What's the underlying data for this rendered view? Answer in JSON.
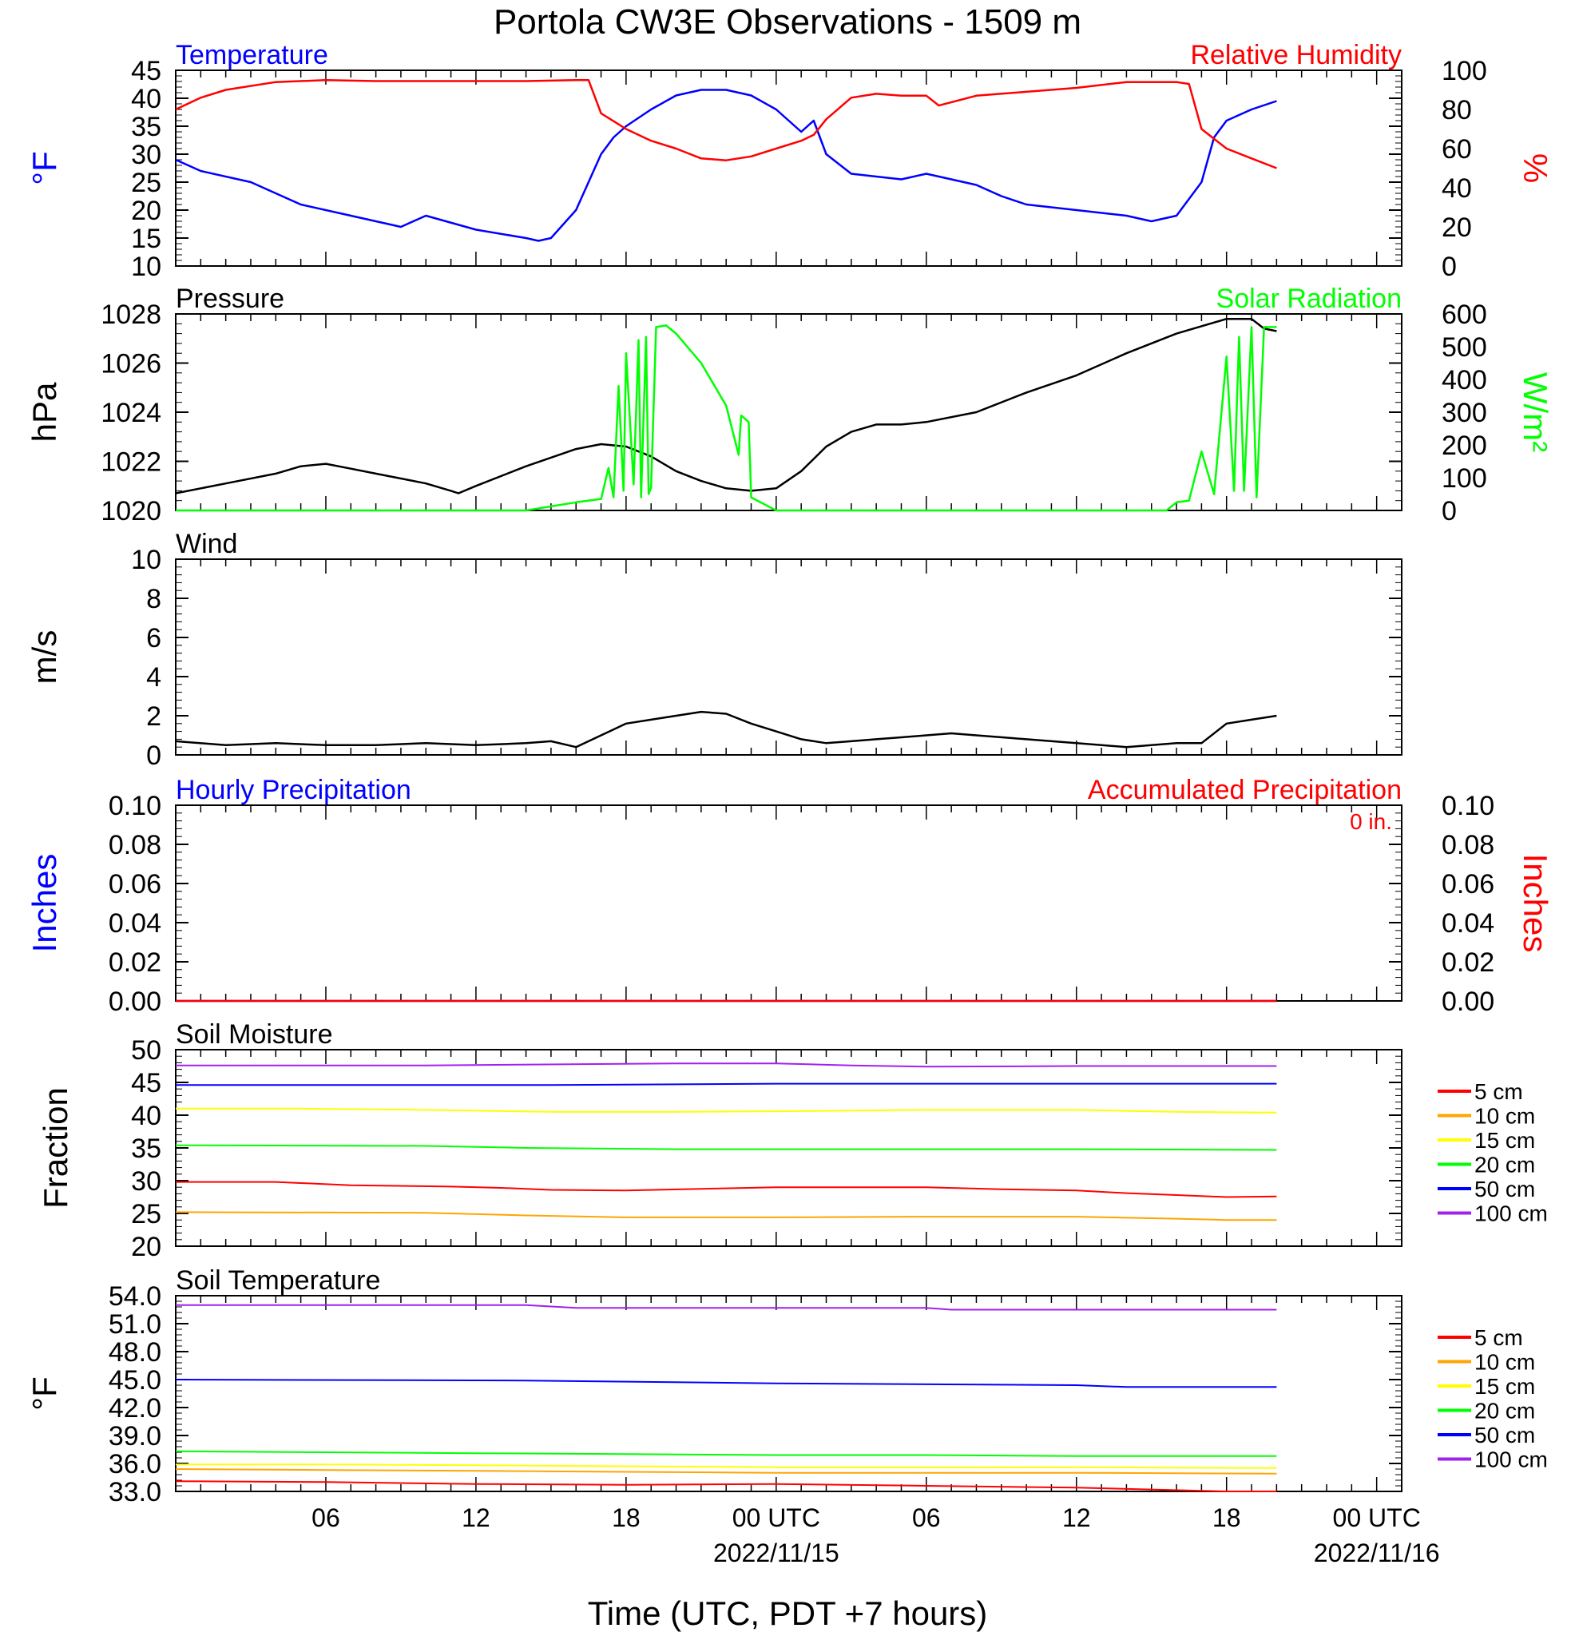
{
  "title": "Portola CW3E Observations - 1509 m",
  "xlabel": "Time (UTC, PDT +7 hours)",
  "x_axis": {
    "ticks": [
      {
        "hour": 6,
        "label": "06"
      },
      {
        "hour": 12,
        "label": "12"
      },
      {
        "hour": 18,
        "label": "18"
      },
      {
        "hour": 24,
        "label": "00 UTC",
        "date": "2022/11/15"
      },
      {
        "hour": 30,
        "label": "06"
      },
      {
        "hour": 36,
        "label": "12"
      },
      {
        "hour": 42,
        "label": "18"
      },
      {
        "hour": 48,
        "label": "00 UTC",
        "date": "2022/11/16"
      }
    ],
    "range_hours": [
      0,
      49
    ]
  },
  "colors": {
    "blue": "#0000ff",
    "red": "#ff0000",
    "green": "#00ff00",
    "black": "#000000",
    "orange": "#ffa500",
    "yellow": "#ffff00",
    "purple": "#a020f0"
  },
  "chart_data": [
    {
      "type": "line",
      "left_title": "Temperature",
      "right_title": "Relative Humidity",
      "left_unit": "°F",
      "right_unit": "%",
      "left_ticks": [
        "45",
        "40",
        "35",
        "30",
        "25",
        "20",
        "15",
        "10"
      ],
      "right_ticks": [
        "100",
        "80",
        "60",
        "40",
        "20",
        "0"
      ],
      "ylim_left": [
        10,
        45
      ],
      "ylim_right": [
        0,
        100
      ],
      "series": [
        {
          "name": "Temperature",
          "axis": "left",
          "x": [
            0,
            1,
            3,
            5,
            7,
            9,
            10,
            12,
            14,
            14.5,
            15,
            16,
            17,
            17.5,
            18,
            19,
            20,
            21,
            22,
            23,
            24,
            25,
            25.5,
            26,
            27,
            28,
            29,
            30,
            32,
            33,
            34,
            36,
            38,
            39,
            40,
            41,
            41.5,
            42,
            43,
            44
          ],
          "y": [
            29,
            27,
            25,
            21,
            19,
            17,
            19,
            16.5,
            15,
            14.5,
            15,
            20,
            30,
            33,
            35,
            38,
            40.5,
            41.5,
            41.5,
            40.5,
            38,
            34,
            36,
            30,
            26.5,
            26,
            25.5,
            26.5,
            24.5,
            22.5,
            21,
            20,
            19,
            18,
            19,
            25,
            33,
            36,
            38,
            39.5
          ]
        },
        {
          "name": "Relative Humidity",
          "axis": "right",
          "x": [
            0,
            1,
            2,
            4,
            6,
            8,
            10,
            12,
            14,
            16,
            16.5,
            17,
            18,
            19,
            20,
            21,
            22,
            23,
            24,
            25,
            25.5,
            26,
            27,
            28,
            29,
            30,
            30.5,
            32,
            34,
            36,
            38,
            40,
            40.5,
            41,
            42,
            43,
            44
          ],
          "y": [
            80,
            86,
            90,
            94,
            95,
            94.5,
            94.5,
            94.5,
            94.5,
            95,
            95,
            78,
            70,
            64,
            60,
            55,
            54,
            56,
            60,
            64,
            67,
            75,
            86,
            88,
            87,
            87,
            82,
            87,
            89,
            91,
            94,
            94,
            93,
            70,
            60,
            55,
            50
          ]
        }
      ]
    },
    {
      "type": "line",
      "left_title": "Pressure",
      "right_title": "Solar Radiation",
      "left_unit": "hPa",
      "right_unit": "W/m²",
      "left_ticks": [
        "1028",
        "1026",
        "1024",
        "1022",
        "1020"
      ],
      "right_ticks": [
        "600",
        "500",
        "400",
        "300",
        "200",
        "100",
        "0"
      ],
      "ylim_left": [
        1020,
        1028
      ],
      "ylim_right": [
        0,
        600
      ],
      "series": [
        {
          "name": "Pressure",
          "axis": "left",
          "x": [
            0,
            2,
            4,
            5,
            6,
            7,
            8,
            9,
            10,
            11,
            11.3,
            12,
            14,
            16,
            17,
            18,
            19,
            20,
            21,
            22,
            23,
            24,
            25,
            26,
            27,
            28,
            29,
            30,
            32,
            34,
            36,
            38,
            40,
            42,
            43,
            43.5,
            44
          ],
          "y": [
            1020.7,
            1021.1,
            1021.5,
            1021.8,
            1021.9,
            1021.7,
            1021.5,
            1021.3,
            1021.1,
            1020.8,
            1020.7,
            1021.0,
            1021.8,
            1022.5,
            1022.7,
            1022.6,
            1022.2,
            1021.6,
            1021.2,
            1020.9,
            1020.8,
            1020.9,
            1021.6,
            1022.6,
            1023.2,
            1023.5,
            1023.5,
            1023.6,
            1024.0,
            1024.8,
            1025.5,
            1026.4,
            1027.2,
            1027.8,
            1027.8,
            1027.4,
            1027.3
          ]
        },
        {
          "name": "Solar Radiation",
          "axis": "right",
          "x": [
            0,
            14,
            16,
            17,
            17.3,
            17.5,
            17.7,
            17.9,
            18,
            18.3,
            18.5,
            18.6,
            18.8,
            18.9,
            19,
            19.2,
            19.6,
            20,
            21,
            22,
            22.5,
            22.6,
            22.9,
            23,
            24,
            30,
            38,
            39.6,
            40,
            40.5,
            41,
            41.5,
            42,
            42.3,
            42.5,
            42.7,
            43,
            43.2,
            43.5,
            44
          ],
          "y": [
            0,
            0,
            25,
            35,
            130,
            40,
            380,
            60,
            480,
            80,
            520,
            40,
            530,
            50,
            70,
            560,
            565,
            540,
            450,
            320,
            170,
            290,
            270,
            40,
            0,
            0,
            0,
            0,
            25,
            30,
            180,
            50,
            470,
            60,
            530,
            60,
            560,
            40,
            560,
            560
          ]
        }
      ]
    },
    {
      "type": "line",
      "left_title": "Wind",
      "left_unit": "m/s",
      "left_ticks": [
        "10",
        "8",
        "6",
        "4",
        "2",
        "0"
      ],
      "ylim_left": [
        0,
        10
      ],
      "series": [
        {
          "name": "Wind",
          "x": [
            0,
            2,
            4,
            6,
            8,
            10,
            12,
            14,
            15,
            16,
            17,
            18,
            19,
            20,
            21,
            22,
            23,
            24,
            25,
            26,
            27,
            28,
            29,
            30,
            31,
            32,
            34,
            36,
            38,
            40,
            41,
            42,
            43,
            44
          ],
          "y": [
            0.7,
            0.5,
            0.6,
            0.5,
            0.5,
            0.6,
            0.5,
            0.6,
            0.7,
            0.4,
            1.0,
            1.6,
            1.8,
            2.0,
            2.2,
            2.1,
            1.6,
            1.2,
            0.8,
            0.6,
            0.7,
            0.8,
            0.9,
            1.0,
            1.1,
            1.0,
            0.8,
            0.6,
            0.4,
            0.6,
            0.6,
            1.6,
            1.8,
            2.0
          ]
        }
      ]
    },
    {
      "type": "line",
      "left_title": "Hourly Precipitation",
      "right_title": "Accumulated Precipitation",
      "annotation": "0 in.",
      "left_unit": "Inches",
      "right_unit": "Inches",
      "left_ticks": [
        "0.10",
        "0.08",
        "0.06",
        "0.04",
        "0.02",
        "0.00"
      ],
      "right_ticks": [
        "0.10",
        "0.08",
        "0.06",
        "0.04",
        "0.02",
        "0.00"
      ],
      "ylim_left": [
        0,
        0.1
      ],
      "series": [
        {
          "name": "Hourly Precipitation",
          "x": [
            0,
            44
          ],
          "y": [
            0,
            0
          ]
        },
        {
          "name": "Accumulated Precipitation",
          "x": [
            0,
            44
          ],
          "y": [
            0,
            0
          ]
        }
      ]
    },
    {
      "type": "line",
      "left_title": "Soil Moisture",
      "left_unit": "Fraction",
      "left_ticks": [
        "50",
        "45",
        "40",
        "35",
        "30",
        "25",
        "20"
      ],
      "ylim_left": [
        20,
        50
      ],
      "legend": [
        "5 cm",
        "10 cm",
        "15 cm",
        "20 cm",
        "50 cm",
        "100 cm"
      ],
      "series": [
        {
          "name": "5 cm",
          "x": [
            0,
            4,
            7,
            11,
            13,
            15,
            18,
            24,
            30,
            33,
            36,
            38,
            40,
            42,
            44
          ],
          "y": [
            29.8,
            29.8,
            29.3,
            29.1,
            28.9,
            28.6,
            28.5,
            29.0,
            29.0,
            28.7,
            28.5,
            28.1,
            27.8,
            27.5,
            27.6
          ]
        },
        {
          "name": "10 cm",
          "x": [
            0,
            10,
            14,
            18,
            24,
            30,
            36,
            40,
            42,
            44
          ],
          "y": [
            25.2,
            25.1,
            24.7,
            24.4,
            24.4,
            24.5,
            24.5,
            24.2,
            24.0,
            24.0
          ]
        },
        {
          "name": "15 cm",
          "x": [
            0,
            5,
            10,
            15,
            20,
            24,
            30,
            36,
            40,
            44
          ],
          "y": [
            41.0,
            41.0,
            40.8,
            40.5,
            40.5,
            40.6,
            40.8,
            40.8,
            40.5,
            40.4
          ]
        },
        {
          "name": "20 cm",
          "x": [
            0,
            10,
            14,
            20,
            24,
            30,
            36,
            44
          ],
          "y": [
            35.4,
            35.3,
            35.0,
            34.8,
            34.8,
            34.8,
            34.8,
            34.7
          ]
        },
        {
          "name": "50 cm",
          "x": [
            0,
            15,
            24,
            30,
            44
          ],
          "y": [
            44.6,
            44.6,
            44.8,
            44.8,
            44.8
          ]
        },
        {
          "name": "100 cm",
          "x": [
            0,
            10,
            20,
            24,
            27,
            30,
            36,
            44
          ],
          "y": [
            47.6,
            47.6,
            47.9,
            47.9,
            47.6,
            47.4,
            47.5,
            47.5
          ]
        }
      ]
    },
    {
      "type": "line",
      "left_title": "Soil Temperature",
      "left_unit": "°F",
      "left_ticks": [
        "54.0",
        "51.0",
        "48.0",
        "45.0",
        "42.0",
        "39.0",
        "36.0",
        "33.0"
      ],
      "ylim_left": [
        33,
        54
      ],
      "legend": [
        "5 cm",
        "10 cm",
        "15 cm",
        "20 cm",
        "50 cm",
        "100 cm"
      ],
      "series": [
        {
          "name": "5 cm",
          "x": [
            0,
            6,
            12,
            18,
            24,
            30,
            36,
            42,
            44
          ],
          "y": [
            34.1,
            34.0,
            33.8,
            33.7,
            33.8,
            33.6,
            33.4,
            33.0,
            33.0
          ]
        },
        {
          "name": "10 cm",
          "x": [
            0,
            6,
            12,
            18,
            24,
            30,
            36,
            44
          ],
          "y": [
            35.4,
            35.3,
            35.2,
            35.1,
            35.0,
            35.0,
            35.0,
            34.9
          ]
        },
        {
          "name": "15 cm",
          "x": [
            0,
            6,
            12,
            18,
            24,
            30,
            36,
            44
          ],
          "y": [
            35.9,
            35.9,
            35.8,
            35.7,
            35.6,
            35.6,
            35.6,
            35.5
          ]
        },
        {
          "name": "20 cm",
          "x": [
            0,
            6,
            12,
            18,
            24,
            30,
            36,
            44
          ],
          "y": [
            37.3,
            37.2,
            37.1,
            37.0,
            36.9,
            36.9,
            36.8,
            36.8
          ]
        },
        {
          "name": "50 cm",
          "x": [
            0,
            14,
            24,
            36,
            38,
            44
          ],
          "y": [
            45.0,
            44.9,
            44.6,
            44.4,
            44.2,
            44.2
          ]
        },
        {
          "name": "100 cm",
          "x": [
            0,
            14,
            16,
            30,
            31,
            44
          ],
          "y": [
            53.0,
            53.0,
            52.7,
            52.7,
            52.5,
            52.5
          ]
        }
      ]
    }
  ]
}
